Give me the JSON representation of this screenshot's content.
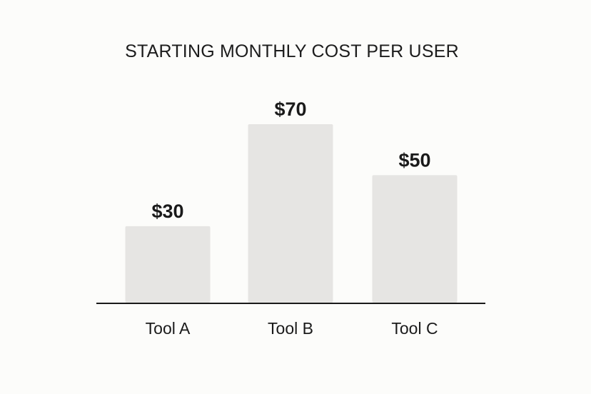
{
  "chart_data": {
    "type": "bar",
    "title": "STARTING MONTHLY COST PER USER",
    "categories": [
      "Tool A",
      "Tool B",
      "Tool C"
    ],
    "values": [
      30,
      70,
      50
    ],
    "value_labels": [
      "$30",
      "$70",
      "$50"
    ],
    "xlabel": "",
    "ylabel": "",
    "ylim": [
      0,
      70
    ],
    "grid": false,
    "bar_color": "#e6e5e3",
    "axis_color": "#1a1a1a",
    "background_color": "#fcfcfa"
  }
}
